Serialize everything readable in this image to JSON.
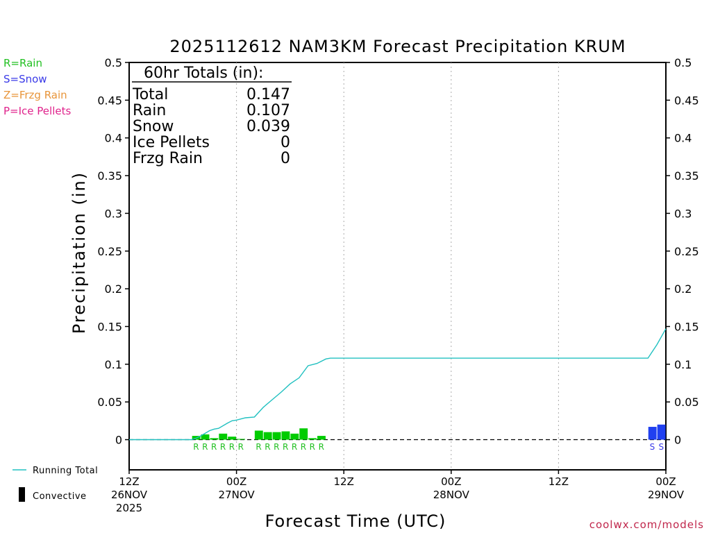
{
  "chart_data": {
    "type": "bar",
    "title": "2025112612 NAM3KM Forecast Precipitation KRUM",
    "ylabel": "Precipitation (in)",
    "xlabel": "Forecast Time (UTC)",
    "ylim": [
      -0.04,
      0.5
    ],
    "yticks": [
      0,
      0.05,
      0.1,
      0.15,
      0.2,
      0.25,
      0.3,
      0.35,
      0.4,
      0.45,
      0.5
    ],
    "ytick_labels": [
      "0",
      "0.05",
      "0.1",
      "0.15",
      "0.2",
      "0.25",
      "0.3",
      "0.35",
      "0.4",
      "0.45",
      "0.5"
    ],
    "xlim": [
      0,
      60
    ],
    "x_unit": "forecast hour",
    "xticks": [
      {
        "hour": 0,
        "lines": [
          "12Z",
          "26NOV",
          "2025"
        ]
      },
      {
        "hour": 12,
        "lines": [
          "00Z",
          "27NOV"
        ]
      },
      {
        "hour": 24,
        "lines": [
          "12Z"
        ]
      },
      {
        "hour": 36,
        "lines": [
          "00Z",
          "28NOV"
        ]
      },
      {
        "hour": 48,
        "lines": [
          "12Z"
        ]
      },
      {
        "hour": 60,
        "lines": [
          "00Z",
          "29NOV"
        ]
      }
    ],
    "grid_hours": [
      12,
      24,
      36,
      48
    ],
    "type_legend": [
      {
        "label": "R=Rain",
        "color": "#22c022"
      },
      {
        "label": "S=Snow",
        "color": "#3a3ae8"
      },
      {
        "label": "Z=Frzg Rain",
        "color": "#e8953a"
      },
      {
        "label": "P=Ice Pellets",
        "color": "#e0238c"
      }
    ],
    "series_legend": {
      "running_total": "Running Total",
      "convective": "Convective"
    },
    "totals": {
      "heading": "60hr Totals (in):",
      "rows": [
        {
          "label": "Total",
          "value": "0.147"
        },
        {
          "label": "Rain",
          "value": "0.107"
        },
        {
          "label": "Snow",
          "value": "0.039"
        },
        {
          "label": "Ice Pellets",
          "value": "0"
        },
        {
          "label": "Frzg Rain",
          "value": "0"
        }
      ]
    },
    "bars": [
      {
        "hour": 8,
        "value": 0.005,
        "type": "R"
      },
      {
        "hour": 9,
        "value": 0.007,
        "type": "R"
      },
      {
        "hour": 10,
        "value": 0.002,
        "type": "R"
      },
      {
        "hour": 11,
        "value": 0.008,
        "type": "R"
      },
      {
        "hour": 12,
        "value": 0.004,
        "type": "R"
      },
      {
        "hour": 13,
        "value": 0.001,
        "type": "R"
      },
      {
        "hour": 15,
        "value": 0.012,
        "type": "R"
      },
      {
        "hour": 16,
        "value": 0.01,
        "type": "R"
      },
      {
        "hour": 17,
        "value": 0.01,
        "type": "R"
      },
      {
        "hour": 18,
        "value": 0.011,
        "type": "R"
      },
      {
        "hour": 19,
        "value": 0.008,
        "type": "R"
      },
      {
        "hour": 20,
        "value": 0.015,
        "type": "R"
      },
      {
        "hour": 21,
        "value": 0.002,
        "type": "R"
      },
      {
        "hour": 22,
        "value": 0.005,
        "type": "R"
      },
      {
        "hour": 59,
        "value": 0.017,
        "type": "S"
      },
      {
        "hour": 60,
        "value": 0.02,
        "type": "S"
      }
    ],
    "running_total": {
      "color": "#20c0c0",
      "points": [
        [
          0,
          0
        ],
        [
          1,
          0
        ],
        [
          2,
          0
        ],
        [
          3,
          0
        ],
        [
          4,
          0
        ],
        [
          5,
          0
        ],
        [
          6,
          0
        ],
        [
          7,
          0
        ],
        [
          7.5,
          0.002
        ],
        [
          8,
          0.005
        ],
        [
          9,
          0.012
        ],
        [
          9.5,
          0.014
        ],
        [
          10,
          0.015
        ],
        [
          11,
          0.022
        ],
        [
          11.5,
          0.025
        ],
        [
          12,
          0.026
        ],
        [
          13,
          0.029
        ],
        [
          14,
          0.03
        ],
        [
          15,
          0.043
        ],
        [
          16,
          0.053
        ],
        [
          17,
          0.063
        ],
        [
          18,
          0.074
        ],
        [
          19,
          0.082
        ],
        [
          20,
          0.098
        ],
        [
          21,
          0.101
        ],
        [
          22,
          0.107
        ],
        [
          22.5,
          0.108
        ],
        [
          30,
          0.108
        ],
        [
          40,
          0.108
        ],
        [
          50,
          0.108
        ],
        [
          58,
          0.108
        ],
        [
          59,
          0.126
        ],
        [
          60,
          0.147
        ]
      ]
    },
    "ptype_markers": [
      {
        "hour": 8,
        "type": "R"
      },
      {
        "hour": 9,
        "type": "R"
      },
      {
        "hour": 10,
        "type": "R"
      },
      {
        "hour": 11,
        "type": "R"
      },
      {
        "hour": 12,
        "type": "R"
      },
      {
        "hour": 13,
        "type": "R"
      },
      {
        "hour": 15,
        "type": "R"
      },
      {
        "hour": 16,
        "type": "R"
      },
      {
        "hour": 17,
        "type": "R"
      },
      {
        "hour": 18,
        "type": "R"
      },
      {
        "hour": 19,
        "type": "R"
      },
      {
        "hour": 20,
        "type": "R"
      },
      {
        "hour": 21,
        "type": "R"
      },
      {
        "hour": 22,
        "type": "R"
      },
      {
        "hour": 59,
        "type": "S"
      },
      {
        "hour": 60,
        "type": "S"
      }
    ],
    "colors": {
      "rain": "#00cc00",
      "snow": "#2040f0",
      "rain_text": "#22c022",
      "snow_text": "#3a3ae8",
      "convective": "#000000",
      "grid": "#aaaaaa"
    },
    "credit": "coolwx.com/models"
  }
}
